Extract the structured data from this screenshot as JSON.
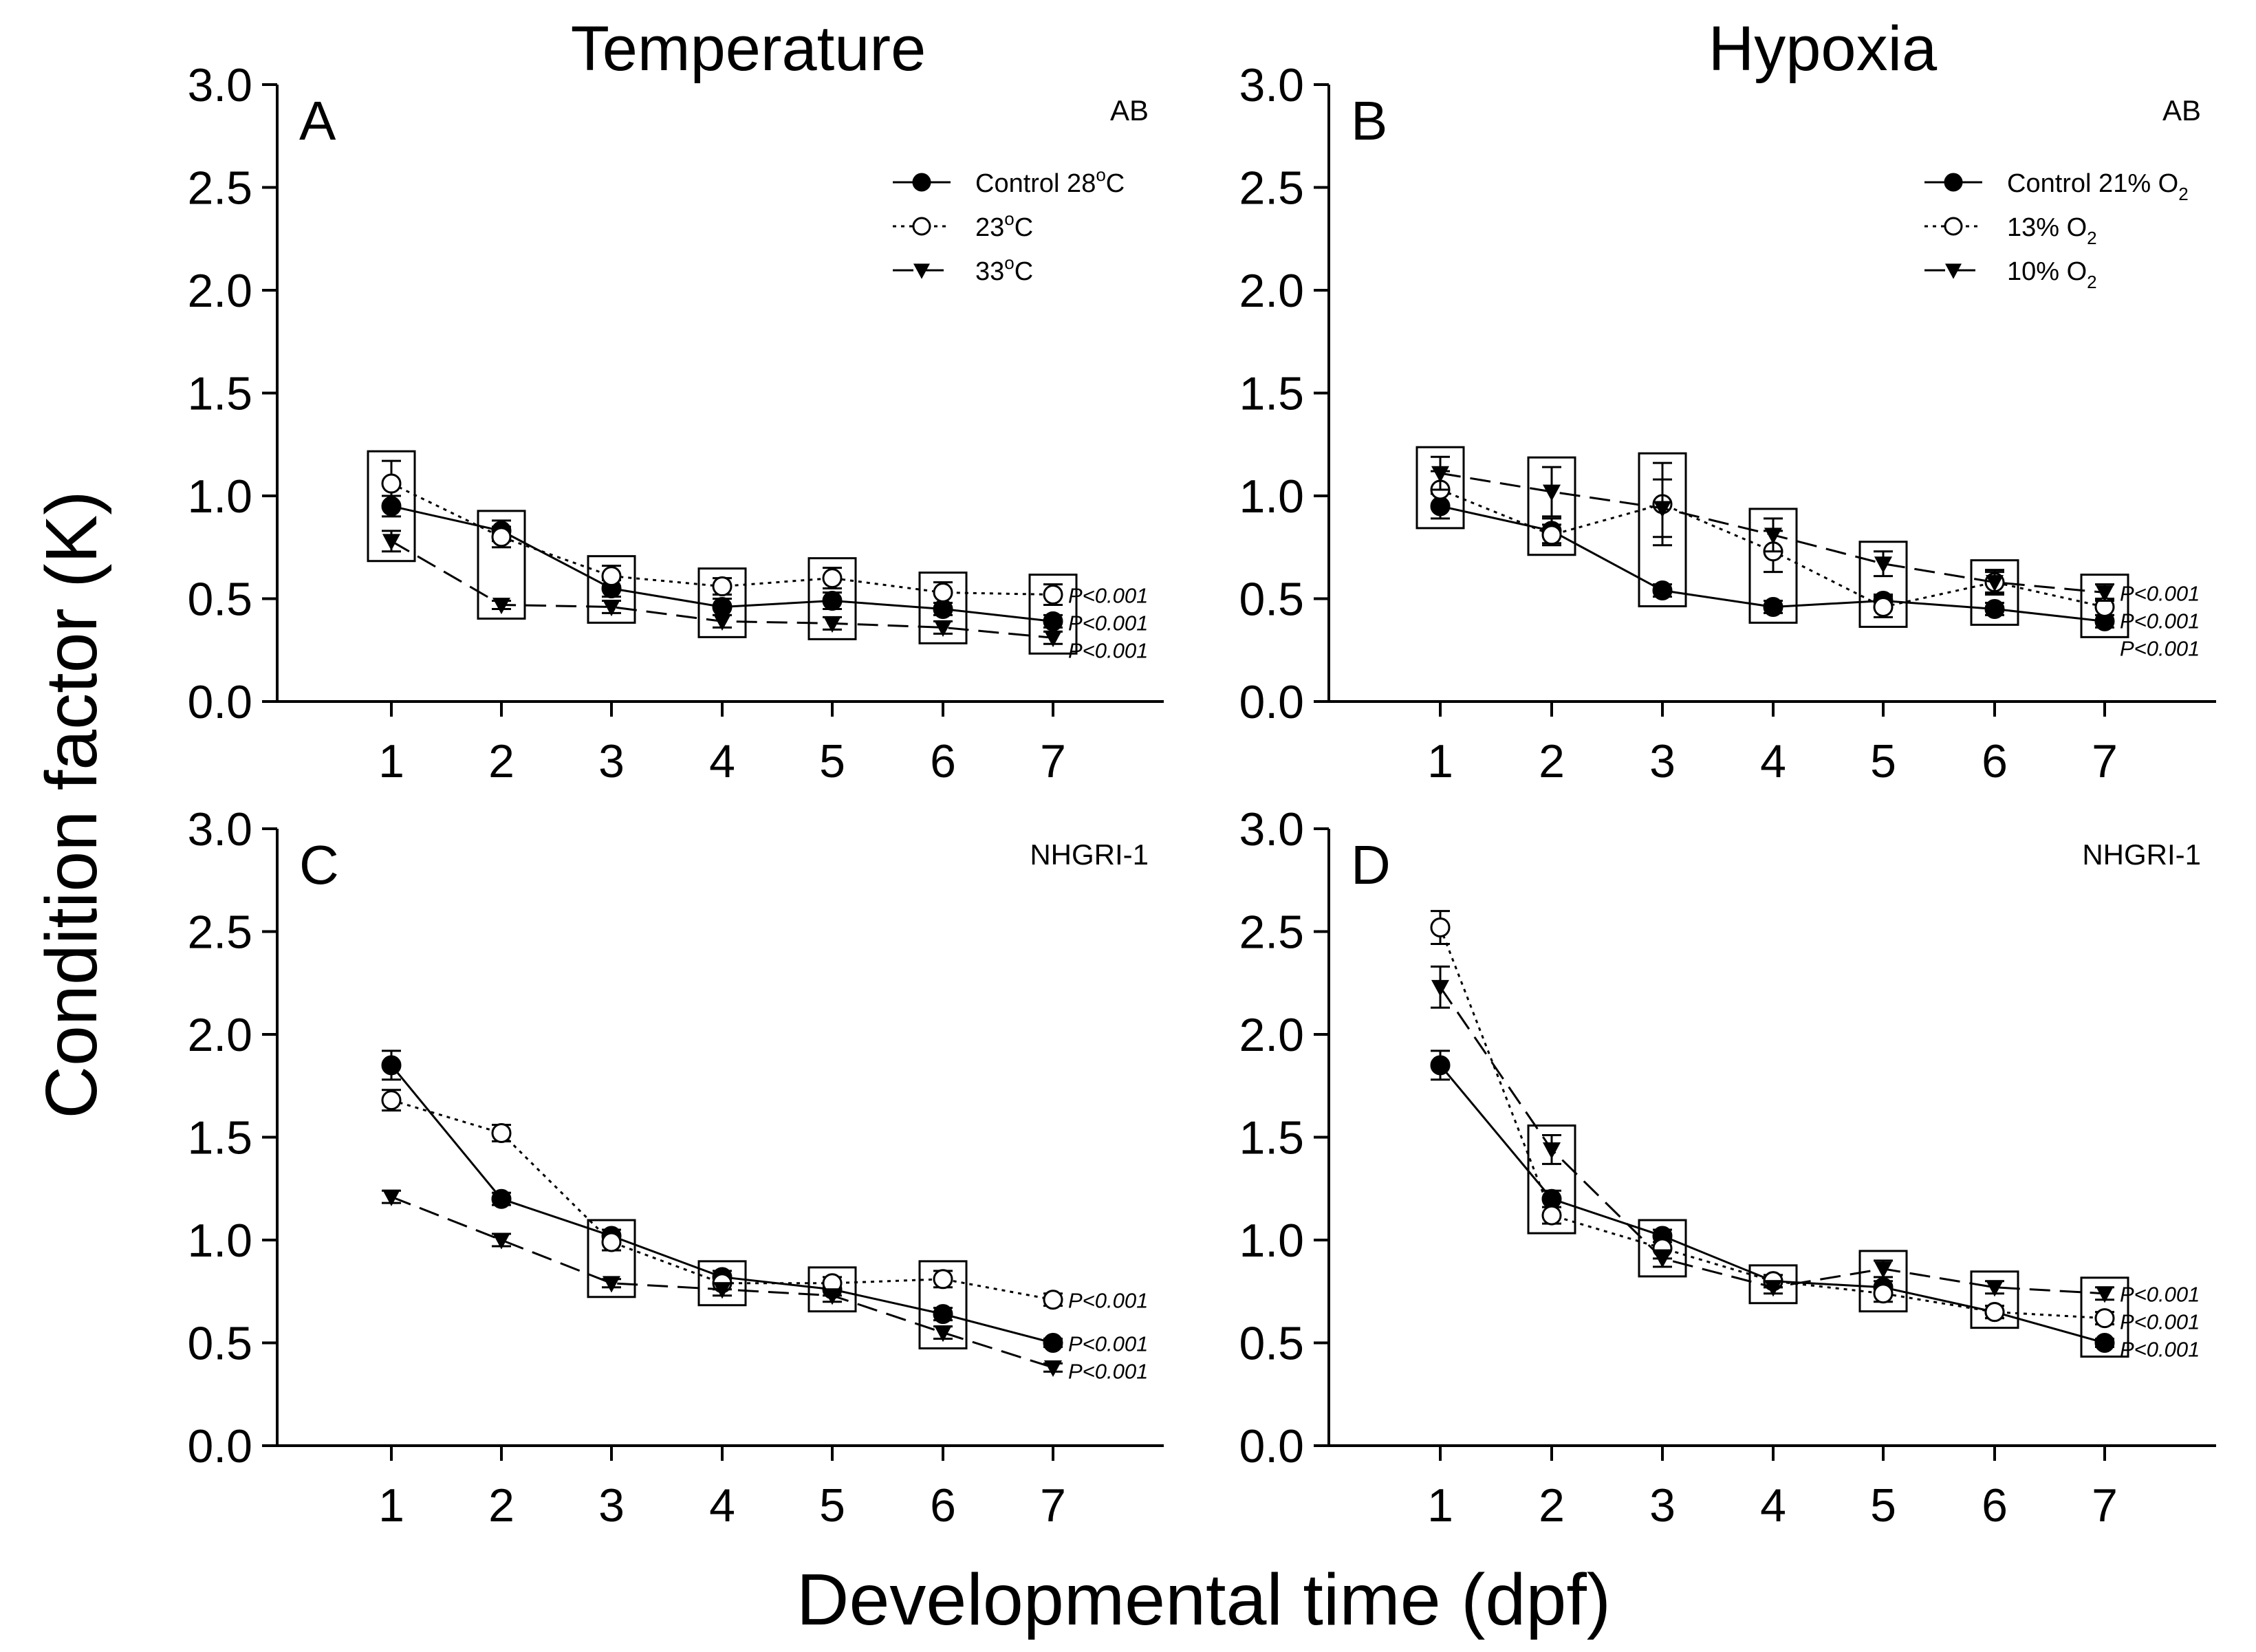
{
  "figure": {
    "column_titles": [
      "Temperature",
      "Hypoxia"
    ],
    "ylabel": "Condition factor (K)",
    "xlabel": "Developmental time (dpf)"
  },
  "chart_data": [
    {
      "type": "line",
      "panel": "A",
      "strain": "AB",
      "x": [
        1,
        2,
        3,
        4,
        5,
        6,
        7
      ],
      "ylim": [
        0,
        3
      ],
      "yticks": [
        "0.0",
        "0.5",
        "1.0",
        "1.5",
        "2.0",
        "2.5",
        "3.0"
      ],
      "legend": [
        {
          "name": "Control 28",
          "sup": "o",
          "tail": "C"
        },
        {
          "name": "23",
          "sup": "o",
          "tail": "C"
        },
        {
          "name": "33",
          "sup": "o",
          "tail": "C"
        }
      ],
      "series": [
        {
          "values": [
            0.95,
            0.83,
            0.55,
            0.46,
            0.49,
            0.45,
            0.39
          ],
          "errors": [
            0.05,
            0.05,
            0.04,
            0.04,
            0.04,
            0.03,
            0.03
          ],
          "marker": "filled-circle",
          "line": "solid",
          "p": "P<0.001"
        },
        {
          "values": [
            1.06,
            0.8,
            0.61,
            0.56,
            0.6,
            0.53,
            0.52
          ],
          "errors": [
            0.11,
            0.05,
            0.05,
            0.04,
            0.05,
            0.05,
            0.05
          ],
          "marker": "open-circle",
          "line": "dotted",
          "p": "P<0.001"
        },
        {
          "values": [
            0.78,
            0.47,
            0.46,
            0.39,
            0.38,
            0.36,
            0.31
          ],
          "errors": [
            0.05,
            0.02,
            0.03,
            0.03,
            0.03,
            0.03,
            0.03
          ],
          "marker": "filled-triangle",
          "line": "dashed",
          "p": "P<0.001"
        }
      ],
      "boxes": [
        1,
        2,
        3,
        4,
        5,
        6,
        7
      ]
    },
    {
      "type": "line",
      "panel": "B",
      "strain": "AB",
      "x": [
        1,
        2,
        3,
        4,
        5,
        6,
        7
      ],
      "ylim": [
        0,
        3
      ],
      "yticks": [
        "0.0",
        "0.5",
        "1.0",
        "1.5",
        "2.0",
        "2.5",
        "3.0"
      ],
      "legend": [
        {
          "name": "Control 21% O",
          "sub": "2"
        },
        {
          "name": "13% O",
          "sub": "2"
        },
        {
          "name": "10% O",
          "sub": "2"
        }
      ],
      "series": [
        {
          "values": [
            0.95,
            0.83,
            0.54,
            0.46,
            0.49,
            0.45,
            0.39
          ],
          "errors": [
            0.06,
            0.06,
            0.03,
            0.03,
            0.03,
            0.03,
            0.03
          ],
          "marker": "filled-circle",
          "line": "solid",
          "p": "P<0.001"
        },
        {
          "values": [
            1.03,
            0.81,
            0.96,
            0.73,
            0.46,
            0.58,
            0.46
          ],
          "errors": [
            0.09,
            0.05,
            0.2,
            0.1,
            0.05,
            0.05,
            0.04
          ],
          "marker": "open-circle",
          "line": "dotted",
          "p": "P<0.001"
        },
        {
          "values": [
            1.11,
            1.02,
            0.94,
            0.81,
            0.67,
            0.58,
            0.53
          ],
          "errors": [
            0.08,
            0.12,
            0.14,
            0.08,
            0.06,
            0.06,
            0.04
          ],
          "marker": "filled-triangle",
          "line": "dashed",
          "p": "P<0.001"
        }
      ],
      "boxes": [
        1,
        2,
        3,
        4,
        5,
        6,
        7
      ]
    },
    {
      "type": "line",
      "panel": "C",
      "strain": "NHGRI-1",
      "x": [
        1,
        2,
        3,
        4,
        5,
        6,
        7
      ],
      "ylim": [
        0,
        3
      ],
      "yticks": [
        "0.0",
        "0.5",
        "1.0",
        "1.5",
        "2.0",
        "2.5",
        "3.0"
      ],
      "legend": [],
      "series": [
        {
          "values": [
            1.85,
            1.2,
            1.02,
            0.82,
            0.76,
            0.64,
            0.5
          ],
          "errors": [
            0.07,
            0.03,
            0.03,
            0.03,
            0.03,
            0.03,
            0.02
          ],
          "marker": "filled-circle",
          "line": "solid",
          "p": "P<0.001"
        },
        {
          "values": [
            1.68,
            1.52,
            0.99,
            0.79,
            0.79,
            0.81,
            0.71
          ],
          "errors": [
            0.05,
            0.04,
            0.04,
            0.03,
            0.03,
            0.04,
            0.03
          ],
          "marker": "open-circle",
          "line": "dotted",
          "p": "P<0.001"
        },
        {
          "values": [
            1.21,
            1.0,
            0.79,
            0.76,
            0.73,
            0.55,
            0.38
          ],
          "errors": [
            0.03,
            0.03,
            0.02,
            0.03,
            0.03,
            0.03,
            0.02
          ],
          "marker": "filled-triangle",
          "line": "dashed",
          "p": "P<0.001"
        }
      ],
      "boxes": [
        3,
        4,
        5,
        6
      ]
    },
    {
      "type": "line",
      "panel": "D",
      "strain": "NHGRI-1",
      "x": [
        1,
        2,
        3,
        4,
        5,
        6,
        7
      ],
      "ylim": [
        0,
        3
      ],
      "yticks": [
        "0.0",
        "0.5",
        "1.0",
        "1.5",
        "2.0",
        "2.5",
        "3.0"
      ],
      "legend": [],
      "series": [
        {
          "values": [
            1.85,
            1.2,
            1.02,
            0.8,
            0.77,
            0.65,
            0.5
          ],
          "errors": [
            0.07,
            0.04,
            0.03,
            0.03,
            0.03,
            0.03,
            0.02
          ],
          "marker": "filled-circle",
          "line": "solid",
          "p": "P<0.001"
        },
        {
          "values": [
            2.52,
            1.12,
            0.96,
            0.8,
            0.74,
            0.65,
            0.62
          ],
          "errors": [
            0.08,
            0.04,
            0.05,
            0.03,
            0.04,
            0.03,
            0.03
          ],
          "marker": "open-circle",
          "line": "dotted",
          "p": "P<0.001"
        },
        {
          "values": [
            2.23,
            1.44,
            0.91,
            0.77,
            0.86,
            0.77,
            0.74
          ],
          "errors": [
            0.1,
            0.07,
            0.04,
            0.03,
            0.04,
            0.03,
            0.03
          ],
          "marker": "filled-triangle",
          "line": "dashed",
          "p": "P<0.001"
        }
      ],
      "boxes": [
        2,
        3,
        4,
        5,
        6,
        7
      ]
    }
  ]
}
